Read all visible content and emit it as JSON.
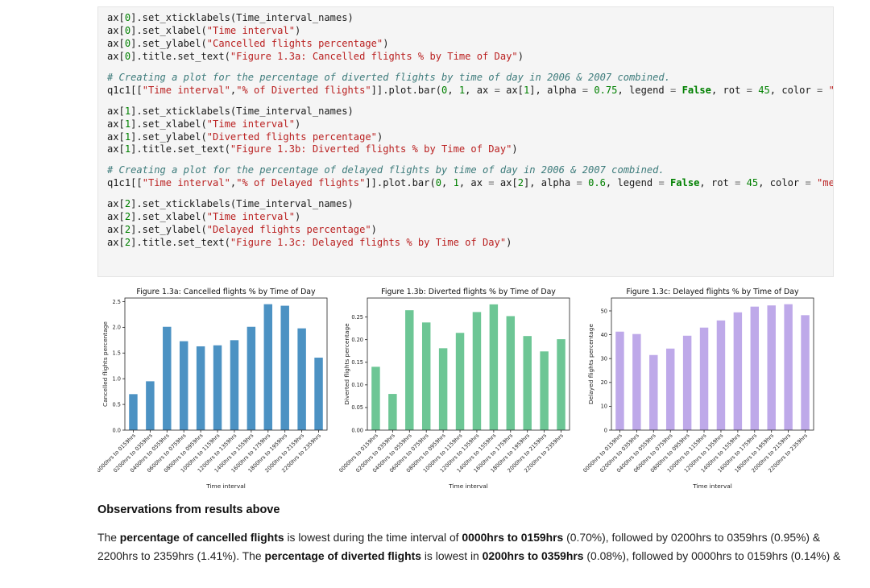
{
  "code_cell": {
    "lines": [
      [
        {
          "t": "ax[",
          "k": "p"
        },
        {
          "t": "0",
          "k": "n"
        },
        {
          "t": "].set_xticklabels(Time_interval_names)",
          "k": "p"
        }
      ],
      [
        {
          "t": "ax[",
          "k": "p"
        },
        {
          "t": "0",
          "k": "n"
        },
        {
          "t": "].set_xlabel(",
          "k": "p"
        },
        {
          "t": "\"Time interval\"",
          "k": "s"
        },
        {
          "t": ")",
          "k": "p"
        }
      ],
      [
        {
          "t": "ax[",
          "k": "p"
        },
        {
          "t": "0",
          "k": "n"
        },
        {
          "t": "].set_ylabel(",
          "k": "p"
        },
        {
          "t": "\"Cancelled flights percentage\"",
          "k": "s"
        },
        {
          "t": ")",
          "k": "p"
        }
      ],
      [
        {
          "t": "ax[",
          "k": "p"
        },
        {
          "t": "0",
          "k": "n"
        },
        {
          "t": "].title.set_text(",
          "k": "p"
        },
        {
          "t": "\"Figure 1.3a: Cancelled flights % by Time of Day\"",
          "k": "s"
        },
        {
          "t": ")",
          "k": "p"
        }
      ],
      null,
      [
        {
          "t": "# Creating a plot for the percentage of diverted flights by time of day in 2006 & 2007 combined.",
          "k": "c"
        }
      ],
      [
        {
          "t": "q1c1[[",
          "k": "p"
        },
        {
          "t": "\"Time interval\"",
          "k": "s"
        },
        {
          "t": ",",
          "k": "p"
        },
        {
          "t": "\"% of Diverted flights\"",
          "k": "s"
        },
        {
          "t": "]].plot.bar(",
          "k": "p"
        },
        {
          "t": "0",
          "k": "n"
        },
        {
          "t": ", ",
          "k": "p"
        },
        {
          "t": "1",
          "k": "n"
        },
        {
          "t": ", ax ",
          "k": "p"
        },
        {
          "t": "=",
          "k": "o"
        },
        {
          "t": " ax[",
          "k": "p"
        },
        {
          "t": "1",
          "k": "n"
        },
        {
          "t": "], alpha ",
          "k": "p"
        },
        {
          "t": "=",
          "k": "o"
        },
        {
          "t": " ",
          "k": "p"
        },
        {
          "t": "0.75",
          "k": "n"
        },
        {
          "t": ", legend ",
          "k": "p"
        },
        {
          "t": "=",
          "k": "o"
        },
        {
          "t": " ",
          "k": "p"
        },
        {
          "t": "False",
          "k": "k"
        },
        {
          "t": ", rot ",
          "k": "p"
        },
        {
          "t": "=",
          "k": "o"
        },
        {
          "t": " ",
          "k": "p"
        },
        {
          "t": "45",
          "k": "n"
        },
        {
          "t": ", color ",
          "k": "p"
        },
        {
          "t": "=",
          "k": "o"
        },
        {
          "t": " ",
          "k": "p"
        },
        {
          "t": "\"medium",
          "k": "s"
        }
      ],
      null,
      [
        {
          "t": "ax[",
          "k": "p"
        },
        {
          "t": "1",
          "k": "n"
        },
        {
          "t": "].set_xticklabels(Time_interval_names)",
          "k": "p"
        }
      ],
      [
        {
          "t": "ax[",
          "k": "p"
        },
        {
          "t": "1",
          "k": "n"
        },
        {
          "t": "].set_xlabel(",
          "k": "p"
        },
        {
          "t": "\"Time interval\"",
          "k": "s"
        },
        {
          "t": ")",
          "k": "p"
        }
      ],
      [
        {
          "t": "ax[",
          "k": "p"
        },
        {
          "t": "1",
          "k": "n"
        },
        {
          "t": "].set_ylabel(",
          "k": "p"
        },
        {
          "t": "\"Diverted flights percentage\"",
          "k": "s"
        },
        {
          "t": ")",
          "k": "p"
        }
      ],
      [
        {
          "t": "ax[",
          "k": "p"
        },
        {
          "t": "1",
          "k": "n"
        },
        {
          "t": "].title.set_text(",
          "k": "p"
        },
        {
          "t": "\"Figure 1.3b: Diverted flights % by Time of Day\"",
          "k": "s"
        },
        {
          "t": ")",
          "k": "p"
        }
      ],
      null,
      [
        {
          "t": "# Creating a plot for the percentage of delayed flights by time of day in 2006 & 2007 combined.",
          "k": "c"
        }
      ],
      [
        {
          "t": "q1c1[[",
          "k": "p"
        },
        {
          "t": "\"Time interval\"",
          "k": "s"
        },
        {
          "t": ",",
          "k": "p"
        },
        {
          "t": "\"% of Delayed flights\"",
          "k": "s"
        },
        {
          "t": "]].plot.bar(",
          "k": "p"
        },
        {
          "t": "0",
          "k": "n"
        },
        {
          "t": ", ",
          "k": "p"
        },
        {
          "t": "1",
          "k": "n"
        },
        {
          "t": ", ax ",
          "k": "p"
        },
        {
          "t": "=",
          "k": "o"
        },
        {
          "t": " ax[",
          "k": "p"
        },
        {
          "t": "2",
          "k": "n"
        },
        {
          "t": "], alpha ",
          "k": "p"
        },
        {
          "t": "=",
          "k": "o"
        },
        {
          "t": " ",
          "k": "p"
        },
        {
          "t": "0.6",
          "k": "n"
        },
        {
          "t": ", legend ",
          "k": "p"
        },
        {
          "t": "=",
          "k": "o"
        },
        {
          "t": " ",
          "k": "p"
        },
        {
          "t": "False",
          "k": "k"
        },
        {
          "t": ", rot ",
          "k": "p"
        },
        {
          "t": "=",
          "k": "o"
        },
        {
          "t": " ",
          "k": "p"
        },
        {
          "t": "45",
          "k": "n"
        },
        {
          "t": ", color ",
          "k": "p"
        },
        {
          "t": "=",
          "k": "o"
        },
        {
          "t": " ",
          "k": "p"
        },
        {
          "t": "\"mediumpu",
          "k": "s"
        }
      ],
      null,
      [
        {
          "t": "ax[",
          "k": "p"
        },
        {
          "t": "2",
          "k": "n"
        },
        {
          "t": "].set_xticklabels(Time_interval_names)",
          "k": "p"
        }
      ],
      [
        {
          "t": "ax[",
          "k": "p"
        },
        {
          "t": "2",
          "k": "n"
        },
        {
          "t": "].set_xlabel(",
          "k": "p"
        },
        {
          "t": "\"Time interval\"",
          "k": "s"
        },
        {
          "t": ")",
          "k": "p"
        }
      ],
      [
        {
          "t": "ax[",
          "k": "p"
        },
        {
          "t": "2",
          "k": "n"
        },
        {
          "t": "].set_ylabel(",
          "k": "p"
        },
        {
          "t": "\"Delayed flights percentage\"",
          "k": "s"
        },
        {
          "t": ")",
          "k": "p"
        }
      ],
      [
        {
          "t": "ax[",
          "k": "p"
        },
        {
          "t": "2",
          "k": "n"
        },
        {
          "t": "].title.set_text(",
          "k": "p"
        },
        {
          "t": "\"Figure 1.3c: Delayed flights % by Time of Day\"",
          "k": "s"
        },
        {
          "t": ")",
          "k": "p"
        }
      ]
    ]
  },
  "chart_data": [
    {
      "type": "bar",
      "title": "Figure 1.3a: Cancelled flights % by Time of Day",
      "xlabel": "Time interval",
      "ylabel": "Cancelled flights percentage",
      "categories": [
        "0000hrs to 0159hrs",
        "0200hrs to 0359hrs",
        "0400hrs to 0559hrs",
        "0600hrs to 0759hrs",
        "0800hrs to 0959hrs",
        "1000hrs to 1159hrs",
        "1200hrs to 1359hrs",
        "1400hrs to 1559hrs",
        "1600hrs to 1759hrs",
        "1800hrs to 1959hrs",
        "2000hrs to 2159hrs",
        "2200hrs to 2359hrs"
      ],
      "values": [
        0.7,
        0.95,
        2.01,
        1.73,
        1.63,
        1.65,
        1.75,
        2.01,
        2.45,
        2.42,
        1.98,
        1.41
      ],
      "ylim": [
        0,
        2.57
      ],
      "yticks": [
        0.0,
        0.5,
        1.0,
        1.5,
        2.0,
        2.5
      ],
      "ytick_labels": [
        "0.0",
        "0.5",
        "1.0",
        "1.5",
        "2.0",
        "2.5"
      ],
      "color": "#1f77b4",
      "alpha": 0.8
    },
    {
      "type": "bar",
      "title": "Figure 1.3b: Diverted flights % by Time of Day",
      "xlabel": "Time interval",
      "ylabel": "Diverted flights percentage",
      "categories": [
        "0000hrs to 0159hrs",
        "0200hrs to 0359hrs",
        "0400hrs to 0559hrs",
        "0600hrs to 0759hrs",
        "0800hrs to 0959hrs",
        "1000hrs to 1159hrs",
        "1200hrs to 1359hrs",
        "1400hrs to 1559hrs",
        "1600hrs to 1759hrs",
        "1800hrs to 1959hrs",
        "2000hrs to 2159hrs",
        "2200hrs to 2359hrs"
      ],
      "values": [
        0.14,
        0.08,
        0.265,
        0.238,
        0.181,
        0.215,
        0.261,
        0.278,
        0.252,
        0.208,
        0.174,
        0.201
      ],
      "ylim": [
        0,
        0.292
      ],
      "yticks": [
        0.0,
        0.05,
        0.1,
        0.15,
        0.2,
        0.25
      ],
      "ytick_labels": [
        "0.00",
        "0.05",
        "0.10",
        "0.15",
        "0.20",
        "0.25"
      ],
      "color": "#3cb371",
      "alpha": 0.75
    },
    {
      "type": "bar",
      "title": "Figure 1.3c: Delayed flights % by Time of Day",
      "xlabel": "Time interval",
      "ylabel": "Delayed flights percentage",
      "categories": [
        "0000hrs to 0159hrs",
        "0200hrs to 0359hrs",
        "0400hrs to 0559hrs",
        "0600hrs to 0759hrs",
        "0800hrs to 0959hrs",
        "1000hrs to 1159hrs",
        "1200hrs to 1359hrs",
        "1400hrs to 1559hrs",
        "1600hrs to 1759hrs",
        "1800hrs to 1959hrs",
        "2000hrs to 2159hrs",
        "2200hrs to 2359hrs"
      ],
      "values": [
        41.3,
        40.3,
        31.5,
        34.2,
        39.6,
        43.0,
        46.0,
        49.4,
        51.8,
        52.3,
        52.8,
        48.2
      ],
      "ylim": [
        0,
        55.4
      ],
      "yticks": [
        0,
        10,
        20,
        30,
        40,
        50
      ],
      "ytick_labels": [
        "0",
        "10",
        "20",
        "30",
        "40",
        "50"
      ],
      "color": "#9370db",
      "alpha": 0.6
    }
  ],
  "observations": {
    "heading": "Observations from results above",
    "paragraph": [
      {
        "t": "The ",
        "b": false
      },
      {
        "t": "percentage of cancelled flights",
        "b": true
      },
      {
        "t": " is lowest during the time interval of ",
        "b": false
      },
      {
        "t": "0000hrs to 0159hrs",
        "b": true
      },
      {
        "t": " (0.70%), followed by 0200hrs to 0359hrs (0.95%) & 2200hrs to 2359hrs (1.41%). The ",
        "b": false
      },
      {
        "t": "percentage of diverted flights",
        "b": true
      },
      {
        "t": " is lowest in ",
        "b": false
      },
      {
        "t": "0200hrs to 0359hrs",
        "b": true
      },
      {
        "t": " (0.08%), followed by 0000hrs to 0159hrs (0.14%) &",
        "b": false
      }
    ]
  }
}
